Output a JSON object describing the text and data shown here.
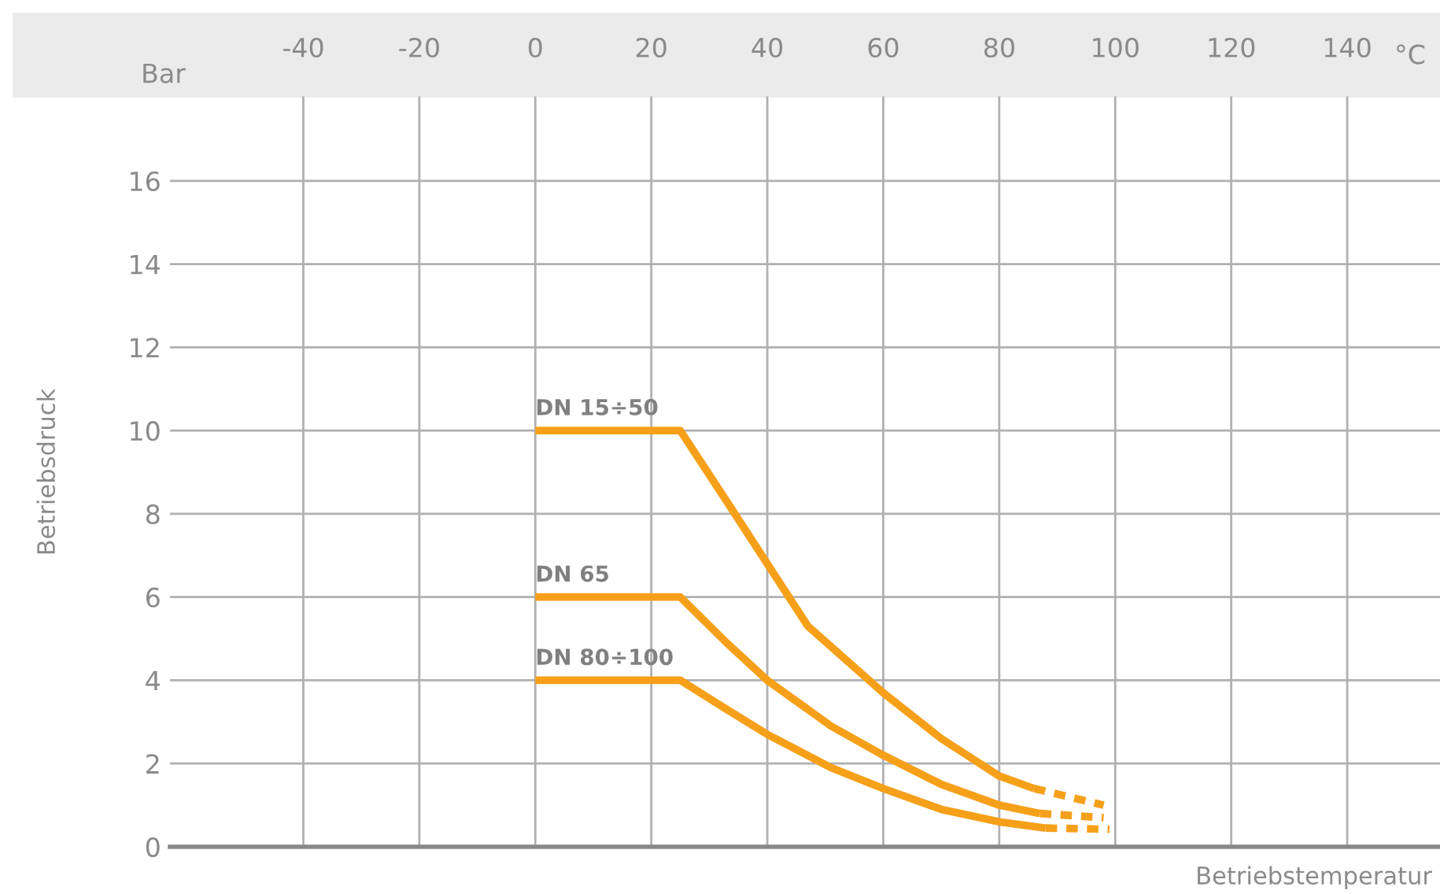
{
  "chart_data": {
    "type": "line",
    "xlabel": "Betriebstemperatur",
    "ylabel": "Betriebsdruck",
    "annotations": [
      "Bar",
      "°C"
    ],
    "xlim": [
      -63,
      156
    ],
    "ylim": [
      0,
      18
    ],
    "xticks": [
      -40,
      -20,
      0,
      20,
      40,
      60,
      80,
      100,
      120,
      140
    ],
    "yticks": [
      0,
      2,
      4,
      6,
      8,
      10,
      12,
      14,
      16
    ],
    "grid": true,
    "legend": false,
    "marker": "none",
    "series": [
      {
        "name": "DN 15÷50",
        "color": "#f6a01a",
        "line_style": "solid",
        "x": [
          0,
          25,
          33,
          40,
          47,
          60,
          70,
          80,
          86
        ],
        "values": [
          10,
          10,
          8.3,
          6.8,
          5.3,
          3.7,
          2.6,
          1.7,
          1.4
        ]
      },
      {
        "color": "#f6a01a",
        "line_style": "dashed",
        "x": [
          86,
          98
        ],
        "values": [
          1.4,
          1.0
        ]
      },
      {
        "name": "DN 65",
        "color": "#f6a01a",
        "line_style": "solid",
        "x": [
          0,
          25,
          33,
          40,
          51,
          60,
          70,
          80,
          87
        ],
        "values": [
          6,
          6,
          4.9,
          4.0,
          2.9,
          2.2,
          1.5,
          1.0,
          0.8
        ]
      },
      {
        "color": "#f6a01a",
        "line_style": "dashed",
        "x": [
          87,
          98
        ],
        "values": [
          0.8,
          0.7
        ]
      },
      {
        "name": "DN 80÷100",
        "color": "#f6a01a",
        "line_style": "solid",
        "x": [
          0,
          25,
          33,
          40,
          51,
          60,
          70,
          80,
          88
        ],
        "values": [
          4,
          4,
          3.3,
          2.7,
          1.9,
          1.4,
          0.9,
          0.6,
          0.45
        ]
      },
      {
        "color": "#f6a01a",
        "line_style": "dashed",
        "x": [
          88,
          99
        ],
        "values": [
          0.45,
          0.42
        ]
      }
    ]
  }
}
